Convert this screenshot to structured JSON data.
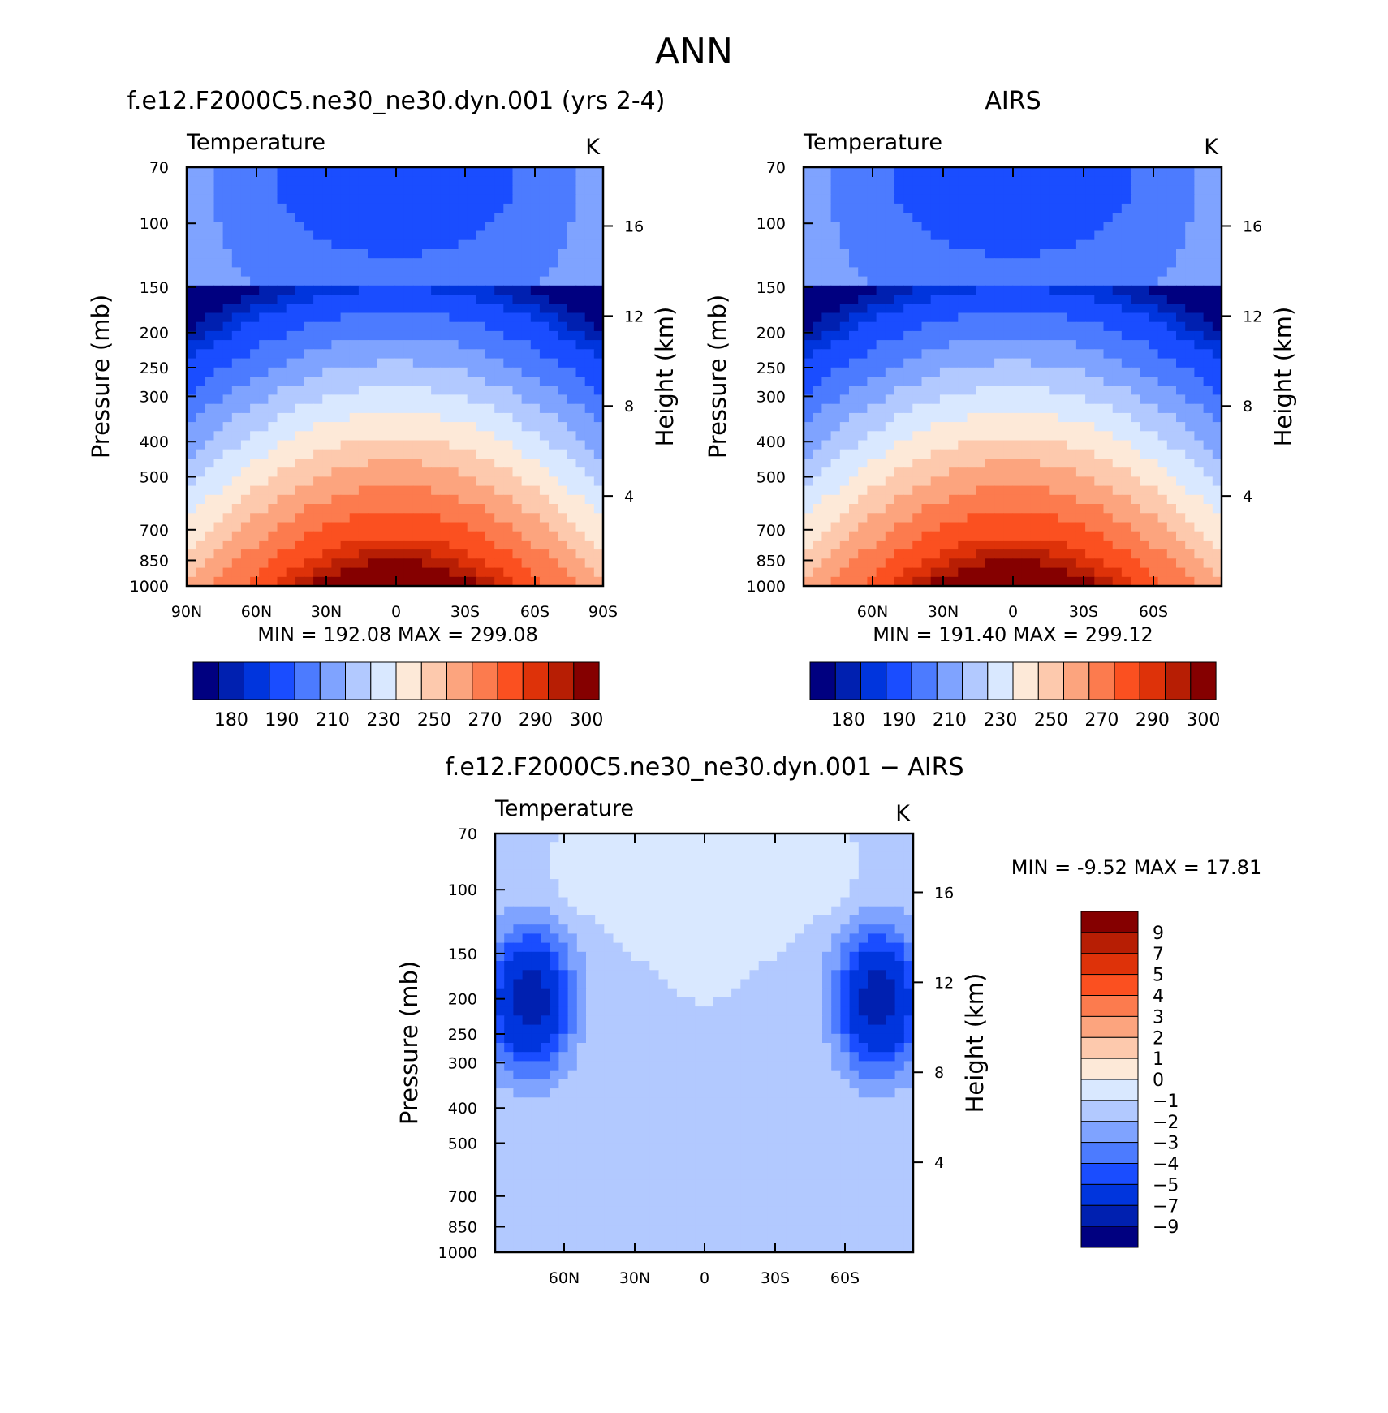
{
  "main_title": "ANN",
  "panels": {
    "top_left": {
      "title": "f.e12.F2000C5.ne30_ne30.dyn.001 (yrs 2-4)",
      "subtitle_left": "Temperature",
      "subtitle_right": "K",
      "min_max": "MIN = 192.08 MAX = 299.08"
    },
    "top_right": {
      "title": "AIRS",
      "subtitle_left": "Temperature",
      "subtitle_right": "K",
      "min_max": "MIN = 191.40 MAX = 299.12"
    },
    "bottom": {
      "title": "f.e12.F2000C5.ne30_ne30.dyn.001 − AIRS",
      "subtitle_left": "Temperature",
      "subtitle_right": "K",
      "min_max": "MIN = -9.52 MAX = 17.81"
    }
  },
  "colors": {
    "temperature_levels": [
      "#000080",
      "#0020b0",
      "#0035dd",
      "#1a4dff",
      "#4c7bff",
      "#7fa3ff",
      "#b2c9ff",
      "#d9e8ff",
      "#fde9d8",
      "#fdc9ad",
      "#fca47e",
      "#fc7b4e",
      "#fb5020",
      "#de3209",
      "#b71e04",
      "#850000"
    ],
    "difference_levels": [
      "#000080",
      "#0020b0",
      "#0035dd",
      "#1a4dff",
      "#4c7bff",
      "#7fa3ff",
      "#b2c9ff",
      "#d9e8ff",
      "#fde9d8",
      "#fdc9ad",
      "#fca47e",
      "#fc7b4e",
      "#fb5020",
      "#de3209",
      "#b71e04",
      "#850000"
    ]
  },
  "chart_data": [
    {
      "type": "heatmap",
      "title": "f.e12.F2000C5.ne30_ne30.dyn.001 (yrs 2-4)",
      "variable": "Temperature",
      "units": "K",
      "xlabel": "",
      "ylabel": "Pressure (mb)",
      "ylabel_right": "Height (km)",
      "x_ticks": [
        "90N",
        "60N",
        "30N",
        "0",
        "30S",
        "60S",
        "90S"
      ],
      "y_ticks": [
        70,
        100,
        150,
        200,
        250,
        300,
        400,
        500,
        700,
        850,
        1000
      ],
      "y_right_ticks": [
        16,
        12,
        8,
        4
      ],
      "ylim": [
        1000,
        70
      ],
      "y_scale": "log",
      "min": 192.08,
      "max": 299.08,
      "colorbar_labels": [
        "180",
        "190",
        "210",
        "230",
        "250",
        "270",
        "290",
        "300"
      ]
    },
    {
      "type": "heatmap",
      "title": "AIRS",
      "variable": "Temperature",
      "units": "K",
      "xlabel": "",
      "ylabel": "Pressure (mb)",
      "ylabel_right": "Height (km)",
      "x_ticks": [
        "60N",
        "30N",
        "0",
        "30S",
        "60S"
      ],
      "y_ticks": [
        70,
        100,
        150,
        200,
        250,
        300,
        400,
        500,
        700,
        850,
        1000
      ],
      "y_right_ticks": [
        16,
        12,
        8,
        4
      ],
      "ylim": [
        1000,
        70
      ],
      "y_scale": "log",
      "min": 191.4,
      "max": 299.12,
      "colorbar_labels": [
        "180",
        "190",
        "210",
        "230",
        "250",
        "270",
        "290",
        "300"
      ]
    },
    {
      "type": "heatmap",
      "title": "f.e12.F2000C5.ne30_ne30.dyn.001 − AIRS",
      "variable": "Temperature",
      "units": "K",
      "xlabel": "",
      "ylabel": "Pressure (mb)",
      "ylabel_right": "Height (km)",
      "x_ticks": [
        "60N",
        "30N",
        "0",
        "30S",
        "60S"
      ],
      "y_ticks": [
        70,
        100,
        150,
        200,
        250,
        300,
        400,
        500,
        700,
        850,
        1000
      ],
      "y_right_ticks": [
        16,
        12,
        8,
        4
      ],
      "ylim": [
        1000,
        70
      ],
      "y_scale": "log",
      "min": -9.52,
      "max": 17.81,
      "colorbar_labels": [
        "9",
        "7",
        "5",
        "4",
        "3",
        "2",
        "1",
        "0",
        "−1",
        "−2",
        "−3",
        "−4",
        "−5",
        "−7",
        "−9"
      ]
    }
  ]
}
